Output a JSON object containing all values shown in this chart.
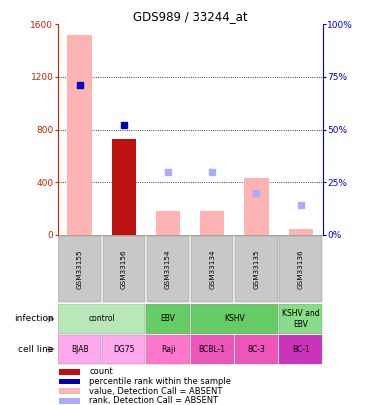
{
  "title": "GDS989 / 33244_at",
  "samples": [
    "GSM33155",
    "GSM33156",
    "GSM33154",
    "GSM33134",
    "GSM33135",
    "GSM33136"
  ],
  "bar_values_absent": [
    1520,
    0,
    185,
    185,
    430,
    45
  ],
  "bar_values_count": [
    0,
    730,
    0,
    0,
    0,
    0
  ],
  "rank_absent_pct": [
    null,
    null,
    30,
    30,
    20,
    14
  ],
  "percentile_rank_pct": [
    71,
    52,
    null,
    null,
    null,
    null
  ],
  "ylim_left": [
    0,
    1600
  ],
  "ylim_right": [
    0,
    100
  ],
  "yticks_left": [
    0,
    400,
    800,
    1200,
    1600
  ],
  "yticks_right": [
    0,
    25,
    50,
    75,
    100
  ],
  "inf_spans": [
    [
      "control",
      0,
      2,
      "#b8e8b8"
    ],
    [
      "EBV",
      2,
      3,
      "#66cc66"
    ],
    [
      "KSHV",
      3,
      5,
      "#66cc66"
    ],
    [
      "KSHV and\nEBV",
      5,
      6,
      "#88dd88"
    ]
  ],
  "cell_spans": [
    [
      "BJAB",
      0,
      1,
      "#ffaaee"
    ],
    [
      "DG75",
      1,
      2,
      "#ffaaee"
    ],
    [
      "Raji",
      2,
      3,
      "#ff77cc"
    ],
    [
      "BCBL-1",
      3,
      4,
      "#ee55bb"
    ],
    [
      "BC-3",
      4,
      5,
      "#ee55bb"
    ],
    [
      "BC-1",
      5,
      6,
      "#cc33bb"
    ]
  ],
  "color_bar_absent": "#ffb3b3",
  "color_bar_count": "#bb1111",
  "color_rank_absent": "#aaaaff",
  "color_percentile": "#0000bb",
  "color_right_axis": "#0000cc",
  "color_left_axis": "#cc2200",
  "sample_col_color": "#c8c8c8",
  "legend_items": [
    [
      "#bb1111",
      "count"
    ],
    [
      "#0000bb",
      "percentile rank within the sample"
    ],
    [
      "#ffb3b3",
      "value, Detection Call = ABSENT"
    ],
    [
      "#aaaaff",
      "rank, Detection Call = ABSENT"
    ]
  ]
}
